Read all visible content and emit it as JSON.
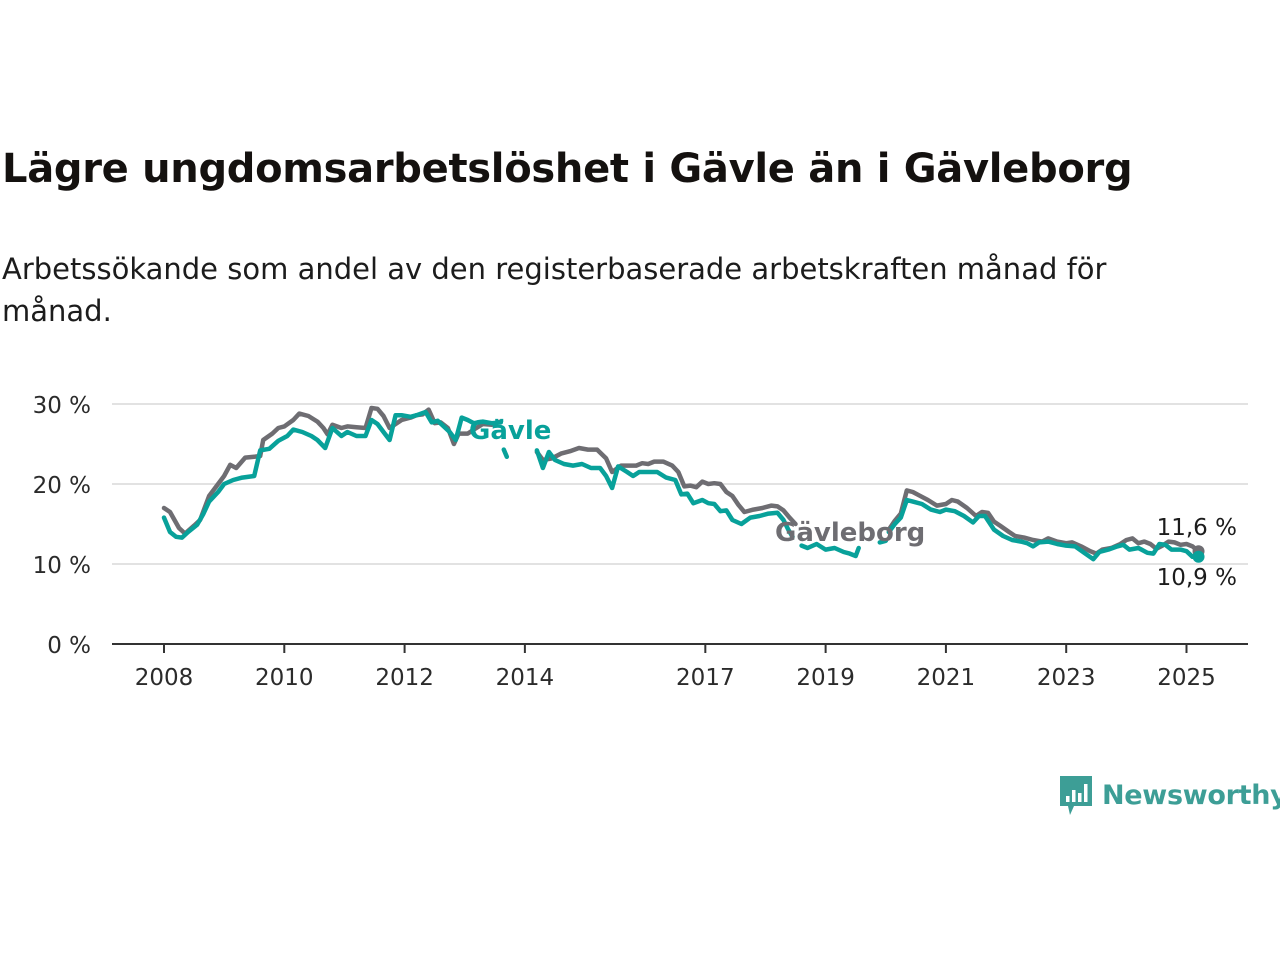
{
  "title": "Lägre ungdomsarbetslöshet i Gävle än i Gävleborg",
  "subtitle": "Arbetssökande som andel av den registerbaserade arbetskraften månad för månad.",
  "brand": {
    "name": "Newsworthy",
    "icon": "bar-chart-icon",
    "color": "#3d9e96"
  },
  "chart_data": {
    "type": "line",
    "title": "Lägre ungdomsarbetslöshet i Gävle än i Gävleborg",
    "subtitle": "Arbetssökande som andel av den registerbaserade arbetskraften månad för månad.",
    "xlabel": "",
    "ylabel": "",
    "ylim": [
      0,
      30
    ],
    "xlim": [
      2008,
      2025.25
    ],
    "y_ticks": [
      {
        "value": 0,
        "label": "0 %"
      },
      {
        "value": 10,
        "label": "10 %"
      },
      {
        "value": 20,
        "label": "20 %"
      },
      {
        "value": 30,
        "label": "30 %"
      }
    ],
    "x_ticks": [
      {
        "value": 2008,
        "label": "2008"
      },
      {
        "value": 2010,
        "label": "2010"
      },
      {
        "value": 2012,
        "label": "2012"
      },
      {
        "value": 2014,
        "label": "2014"
      },
      {
        "value": 2017,
        "label": "2017"
      },
      {
        "value": 2019,
        "label": "2019"
      },
      {
        "value": 2021,
        "label": "2021"
      },
      {
        "value": 2023,
        "label": "2023"
      },
      {
        "value": 2025,
        "label": "2025"
      }
    ],
    "grid": true,
    "series": [
      {
        "name": "Gävleborg",
        "color": "#6e6d72",
        "end_label": "11,6 %",
        "points": [
          [
            2008.0,
            17.0
          ],
          [
            2008.1,
            16.5
          ],
          [
            2008.25,
            14.5
          ],
          [
            2008.35,
            13.8
          ],
          [
            2008.5,
            14.8
          ],
          [
            2008.6,
            15.5
          ],
          [
            2008.75,
            18.5
          ],
          [
            2008.9,
            20
          ],
          [
            2009.0,
            21
          ],
          [
            2009.1,
            22.4
          ],
          [
            2009.2,
            22.0
          ],
          [
            2009.35,
            23.3
          ],
          [
            2009.5,
            23.4
          ],
          [
            2009.6,
            23.5
          ],
          [
            2009.65,
            25.5
          ],
          [
            2009.8,
            26.3
          ],
          [
            2009.9,
            27.0
          ],
          [
            2010.0,
            27.2
          ],
          [
            2010.15,
            28.0
          ],
          [
            2010.25,
            28.8
          ],
          [
            2010.4,
            28.5
          ],
          [
            2010.55,
            27.8
          ],
          [
            2010.65,
            27.0
          ],
          [
            2010.72,
            26.2
          ],
          [
            2010.8,
            27.4
          ],
          [
            2010.95,
            27.0
          ],
          [
            2011.05,
            27.2
          ],
          [
            2011.2,
            27.1
          ],
          [
            2011.35,
            27.0
          ],
          [
            2011.45,
            29.5
          ],
          [
            2011.55,
            29.4
          ],
          [
            2011.65,
            28.5
          ],
          [
            2011.75,
            27.0
          ],
          [
            2011.85,
            27.5
          ],
          [
            2011.95,
            28.0
          ],
          [
            2012.1,
            28.3
          ],
          [
            2012.2,
            28.6
          ],
          [
            2012.3,
            28.7
          ],
          [
            2012.4,
            29.3
          ],
          [
            2012.5,
            27.6
          ],
          [
            2012.6,
            27.7
          ],
          [
            2012.72,
            27.0
          ],
          [
            2012.82,
            25.0
          ],
          [
            2012.9,
            26.3
          ],
          [
            2013.05,
            26.3
          ],
          [
            2013.15,
            26.8
          ],
          [
            2013.3,
            27.5
          ],
          [
            2013.45,
            27.4
          ],
          [
            2013.55,
            27.7
          ],
          [
            2013.6,
            27.8
          ],
          null,
          [
            2014.2,
            24.0
          ],
          [
            2014.3,
            23.0
          ],
          [
            2014.45,
            23.2
          ],
          [
            2014.6,
            23.8
          ],
          [
            2014.75,
            24.1
          ],
          [
            2014.9,
            24.5
          ],
          [
            2015.05,
            24.3
          ],
          [
            2015.2,
            24.3
          ],
          [
            2015.35,
            23.2
          ],
          [
            2015.45,
            21.5
          ],
          [
            2015.6,
            22.3
          ],
          [
            2015.75,
            22.3
          ],
          [
            2015.85,
            22.3
          ],
          [
            2015.95,
            22.6
          ],
          [
            2016.05,
            22.5
          ],
          [
            2016.15,
            22.8
          ],
          [
            2016.3,
            22.8
          ],
          [
            2016.45,
            22.3
          ],
          [
            2016.55,
            21.5
          ],
          [
            2016.65,
            19.7
          ],
          [
            2016.75,
            19.8
          ],
          [
            2016.85,
            19.6
          ],
          [
            2016.95,
            20.3
          ],
          [
            2017.05,
            20.0
          ],
          [
            2017.15,
            20.1
          ],
          [
            2017.25,
            20.0
          ],
          [
            2017.35,
            19.0
          ],
          [
            2017.45,
            18.5
          ],
          [
            2017.55,
            17.4
          ],
          [
            2017.65,
            16.5
          ],
          [
            2017.8,
            16.8
          ],
          [
            2017.95,
            17.0
          ],
          [
            2018.1,
            17.3
          ],
          [
            2018.2,
            17.2
          ],
          [
            2018.3,
            16.7
          ],
          [
            2018.4,
            15.8
          ],
          [
            2018.5,
            15.0
          ],
          null,
          [
            2020.05,
            14.3
          ],
          [
            2020.15,
            15.4
          ],
          [
            2020.25,
            16.3
          ],
          [
            2020.35,
            19.2
          ],
          [
            2020.45,
            19.0
          ],
          [
            2020.55,
            18.6
          ],
          [
            2020.7,
            18.0
          ],
          [
            2020.85,
            17.3
          ],
          [
            2021.0,
            17.5
          ],
          [
            2021.1,
            18.0
          ],
          [
            2021.2,
            17.8
          ],
          [
            2021.35,
            17.0
          ],
          [
            2021.5,
            16.0
          ],
          [
            2021.6,
            16.5
          ],
          [
            2021.7,
            16.4
          ],
          [
            2021.8,
            15.3
          ],
          [
            2021.9,
            14.8
          ],
          [
            2022.05,
            14.0
          ],
          [
            2022.15,
            13.5
          ],
          [
            2022.3,
            13.3
          ],
          [
            2022.45,
            13.0
          ],
          [
            2022.6,
            12.8
          ],
          [
            2022.7,
            13.2
          ],
          [
            2022.85,
            12.8
          ],
          [
            2023.0,
            12.6
          ],
          [
            2023.1,
            12.7
          ],
          [
            2023.25,
            12.2
          ],
          [
            2023.4,
            11.6
          ],
          [
            2023.5,
            11.3
          ],
          [
            2023.6,
            11.8
          ],
          [
            2023.75,
            12.0
          ],
          [
            2023.9,
            12.5
          ],
          [
            2024.0,
            13.0
          ],
          [
            2024.1,
            13.2
          ],
          [
            2024.2,
            12.6
          ],
          [
            2024.3,
            12.8
          ],
          [
            2024.4,
            12.5
          ],
          [
            2024.5,
            11.9
          ],
          [
            2024.6,
            12.3
          ],
          [
            2024.7,
            12.8
          ],
          [
            2024.8,
            12.7
          ],
          [
            2024.9,
            12.4
          ],
          [
            2025.0,
            12.5
          ],
          [
            2025.1,
            12.2
          ],
          [
            2025.2,
            11.6
          ]
        ]
      },
      {
        "name": "Gävle",
        "color": "#08a19a",
        "end_label": "10,9 %",
        "points": [
          [
            2008.0,
            15.8
          ],
          [
            2008.1,
            14.0
          ],
          [
            2008.2,
            13.4
          ],
          [
            2008.3,
            13.3
          ],
          [
            2008.4,
            14.0
          ],
          [
            2008.55,
            14.9
          ],
          [
            2008.65,
            16.2
          ],
          [
            2008.75,
            17.8
          ],
          [
            2008.9,
            19.0
          ],
          [
            2009.0,
            20.0
          ],
          [
            2009.15,
            20.5
          ],
          [
            2009.3,
            20.8
          ],
          [
            2009.5,
            21.0
          ],
          [
            2009.6,
            24.2
          ],
          [
            2009.75,
            24.4
          ],
          [
            2009.9,
            25.4
          ],
          [
            2010.05,
            26.0
          ],
          [
            2010.15,
            26.8
          ],
          [
            2010.3,
            26.5
          ],
          [
            2010.45,
            26.0
          ],
          [
            2010.55,
            25.5
          ],
          [
            2010.68,
            24.5
          ],
          [
            2010.8,
            27.0
          ],
          [
            2010.95,
            26.0
          ],
          [
            2011.05,
            26.5
          ],
          [
            2011.2,
            26.0
          ],
          [
            2011.35,
            26.0
          ],
          [
            2011.45,
            28.0
          ],
          [
            2011.55,
            27.5
          ],
          [
            2011.65,
            26.5
          ],
          [
            2011.75,
            25.5
          ],
          [
            2011.85,
            28.6
          ],
          [
            2011.95,
            28.6
          ],
          [
            2012.1,
            28.4
          ],
          [
            2012.2,
            28.6
          ],
          [
            2012.35,
            29.0
          ],
          [
            2012.45,
            27.7
          ],
          [
            2012.55,
            27.9
          ],
          [
            2012.65,
            27.2
          ],
          [
            2012.75,
            26.5
          ],
          [
            2012.85,
            25.5
          ],
          [
            2012.95,
            28.3
          ],
          [
            2013.05,
            28.0
          ],
          [
            2013.15,
            27.6
          ],
          [
            2013.3,
            27.8
          ],
          [
            2013.45,
            27.6
          ],
          [
            2013.6,
            27.7
          ],
          null,
          [
            2013.65,
            24.3
          ],
          [
            2013.7,
            23.4
          ],
          null,
          [
            2014.2,
            24.2
          ],
          [
            2014.3,
            22.0
          ],
          [
            2014.4,
            24.0
          ],
          [
            2014.5,
            23.0
          ],
          [
            2014.65,
            22.5
          ],
          [
            2014.8,
            22.3
          ],
          [
            2014.95,
            22.5
          ],
          [
            2015.1,
            22.0
          ],
          [
            2015.25,
            22.0
          ],
          [
            2015.35,
            21.0
          ],
          [
            2015.45,
            19.5
          ],
          [
            2015.55,
            22.2
          ],
          [
            2015.7,
            21.5
          ],
          [
            2015.8,
            21.0
          ],
          [
            2015.9,
            21.5
          ],
          [
            2016.05,
            21.5
          ],
          [
            2016.2,
            21.5
          ],
          [
            2016.35,
            20.8
          ],
          [
            2016.5,
            20.5
          ],
          [
            2016.6,
            18.7
          ],
          [
            2016.7,
            18.8
          ],
          [
            2016.8,
            17.6
          ],
          [
            2016.95,
            18.0
          ],
          [
            2017.05,
            17.6
          ],
          [
            2017.15,
            17.5
          ],
          [
            2017.25,
            16.6
          ],
          [
            2017.35,
            16.7
          ],
          [
            2017.45,
            15.5
          ],
          [
            2017.6,
            15.0
          ],
          [
            2017.75,
            15.8
          ],
          [
            2017.9,
            16.0
          ],
          [
            2018.05,
            16.3
          ],
          [
            2018.2,
            16.4
          ],
          [
            2018.3,
            15.5
          ],
          [
            2018.38,
            14.3
          ],
          [
            2018.45,
            13.4
          ],
          null,
          [
            2018.6,
            12.3
          ],
          [
            2018.7,
            12.0
          ],
          [
            2018.85,
            12.5
          ],
          [
            2019.0,
            11.8
          ],
          [
            2019.15,
            12.0
          ],
          [
            2019.3,
            11.5
          ],
          [
            2019.4,
            11.3
          ],
          [
            2019.5,
            11.0
          ],
          [
            2019.55,
            12.0
          ],
          null,
          [
            2019.9,
            12.7
          ],
          [
            2020.0,
            12.9
          ],
          null,
          [
            2020.05,
            14.0
          ],
          [
            2020.15,
            15.0
          ],
          [
            2020.25,
            15.8
          ],
          [
            2020.35,
            18.0
          ],
          [
            2020.45,
            17.8
          ],
          [
            2020.6,
            17.5
          ],
          [
            2020.75,
            16.8
          ],
          [
            2020.9,
            16.5
          ],
          [
            2021.0,
            16.8
          ],
          [
            2021.15,
            16.6
          ],
          [
            2021.3,
            16.0
          ],
          [
            2021.45,
            15.2
          ],
          [
            2021.55,
            16.0
          ],
          [
            2021.65,
            16.0
          ],
          [
            2021.8,
            14.3
          ],
          [
            2021.95,
            13.5
          ],
          [
            2022.1,
            13.0
          ],
          [
            2022.25,
            12.8
          ],
          [
            2022.35,
            12.6
          ],
          [
            2022.45,
            12.2
          ],
          [
            2022.55,
            12.7
          ],
          [
            2022.7,
            12.8
          ],
          [
            2022.85,
            12.5
          ],
          [
            2023.0,
            12.3
          ],
          [
            2023.15,
            12.2
          ],
          [
            2023.3,
            11.4
          ],
          [
            2023.45,
            10.6
          ],
          [
            2023.55,
            11.5
          ],
          [
            2023.7,
            11.8
          ],
          [
            2023.85,
            12.2
          ],
          [
            2023.95,
            12.4
          ],
          [
            2024.05,
            11.8
          ],
          [
            2024.2,
            12.0
          ],
          [
            2024.35,
            11.4
          ],
          [
            2024.45,
            11.3
          ],
          [
            2024.55,
            12.5
          ],
          [
            2024.65,
            12.4
          ],
          [
            2024.75,
            11.8
          ],
          [
            2024.9,
            11.8
          ],
          [
            2025.0,
            11.6
          ],
          [
            2025.1,
            10.9
          ],
          [
            2025.2,
            10.9
          ]
        ]
      }
    ],
    "annotations": [
      {
        "text": "Gävle",
        "series": "Gävle"
      },
      {
        "text": "Gävleborg",
        "series": "Gävleborg"
      }
    ]
  }
}
